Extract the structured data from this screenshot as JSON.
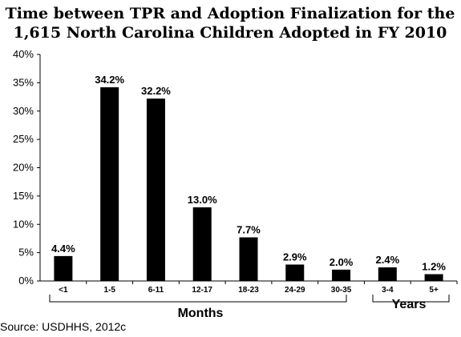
{
  "chart_data": {
    "type": "bar",
    "title_line1": "Time between TPR and Adoption Finalization for the",
    "title_line2": "1,615 North Carolina Children Adopted in FY 2010",
    "categories": [
      "<1",
      "1-5",
      "6-11",
      "12-17",
      "18-23",
      "24-29",
      "30-35",
      "3-4",
      "5+"
    ],
    "values": [
      4.4,
      34.2,
      32.2,
      13.0,
      7.7,
      2.9,
      2.0,
      2.4,
      1.2
    ],
    "value_labels": [
      "4.4%",
      "34.2%",
      "32.2%",
      "13.0%",
      "7.7%",
      "2.9%",
      "2.0%",
      "2.4%",
      "1.2%"
    ],
    "y_ticks": [
      "0%",
      "5%",
      "10%",
      "15%",
      "20%",
      "25%",
      "30%",
      "35%",
      "40%"
    ],
    "ylim": [
      0,
      40
    ],
    "bar_color": "#000000",
    "groups": [
      {
        "label": "Months",
        "from": 0,
        "to": 6
      },
      {
        "label": "Years",
        "from": 7,
        "to": 8
      }
    ],
    "grid": false,
    "source": "Source: USDHHS, 2012c"
  }
}
